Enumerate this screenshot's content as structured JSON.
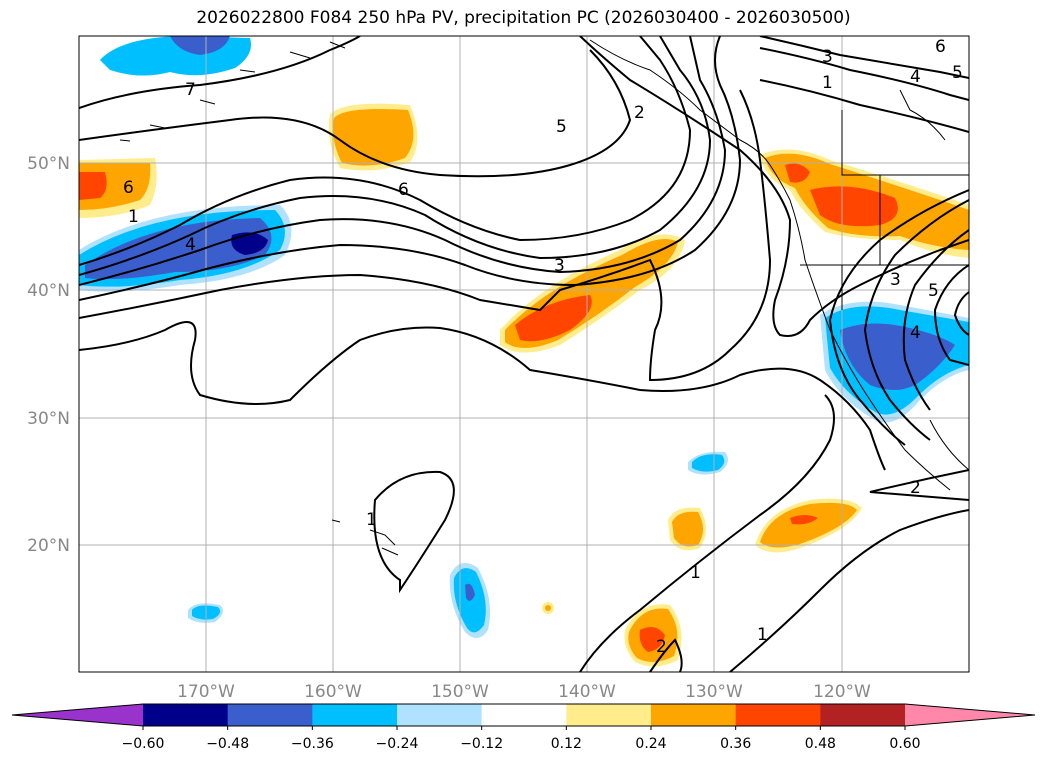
{
  "title": "2026022800 F084 250 hPa PV, precipitation PC (2026030400 - 2026030500)",
  "lat_labels": [
    "50°N",
    "40°N",
    "30°N",
    "20°N"
  ],
  "lon_labels": [
    "170°W",
    "160°W",
    "150°W",
    "140°W",
    "130°W",
    "120°W"
  ],
  "colorbar": {
    "ticks": [
      "−0.60",
      "−0.48",
      "−0.36",
      "−0.24",
      "−0.12",
      "0.12",
      "0.24",
      "0.36",
      "0.48",
      "0.60"
    ],
    "colors": [
      "#9933cc",
      "#00008b",
      "#3a5fcd",
      "#00bfff",
      "#b0e2ff",
      "#ffffff",
      "#ffec8b",
      "#ffa500",
      "#ff4500",
      "#b22222",
      "#ff88aa"
    ]
  },
  "contour_labels": [
    "7",
    "6",
    "1",
    "4",
    "6",
    "5",
    "3",
    "2",
    "3",
    "1",
    "4",
    "5",
    "6",
    "3",
    "4",
    "5",
    "2",
    "1",
    "1",
    "1",
    "2"
  ]
}
